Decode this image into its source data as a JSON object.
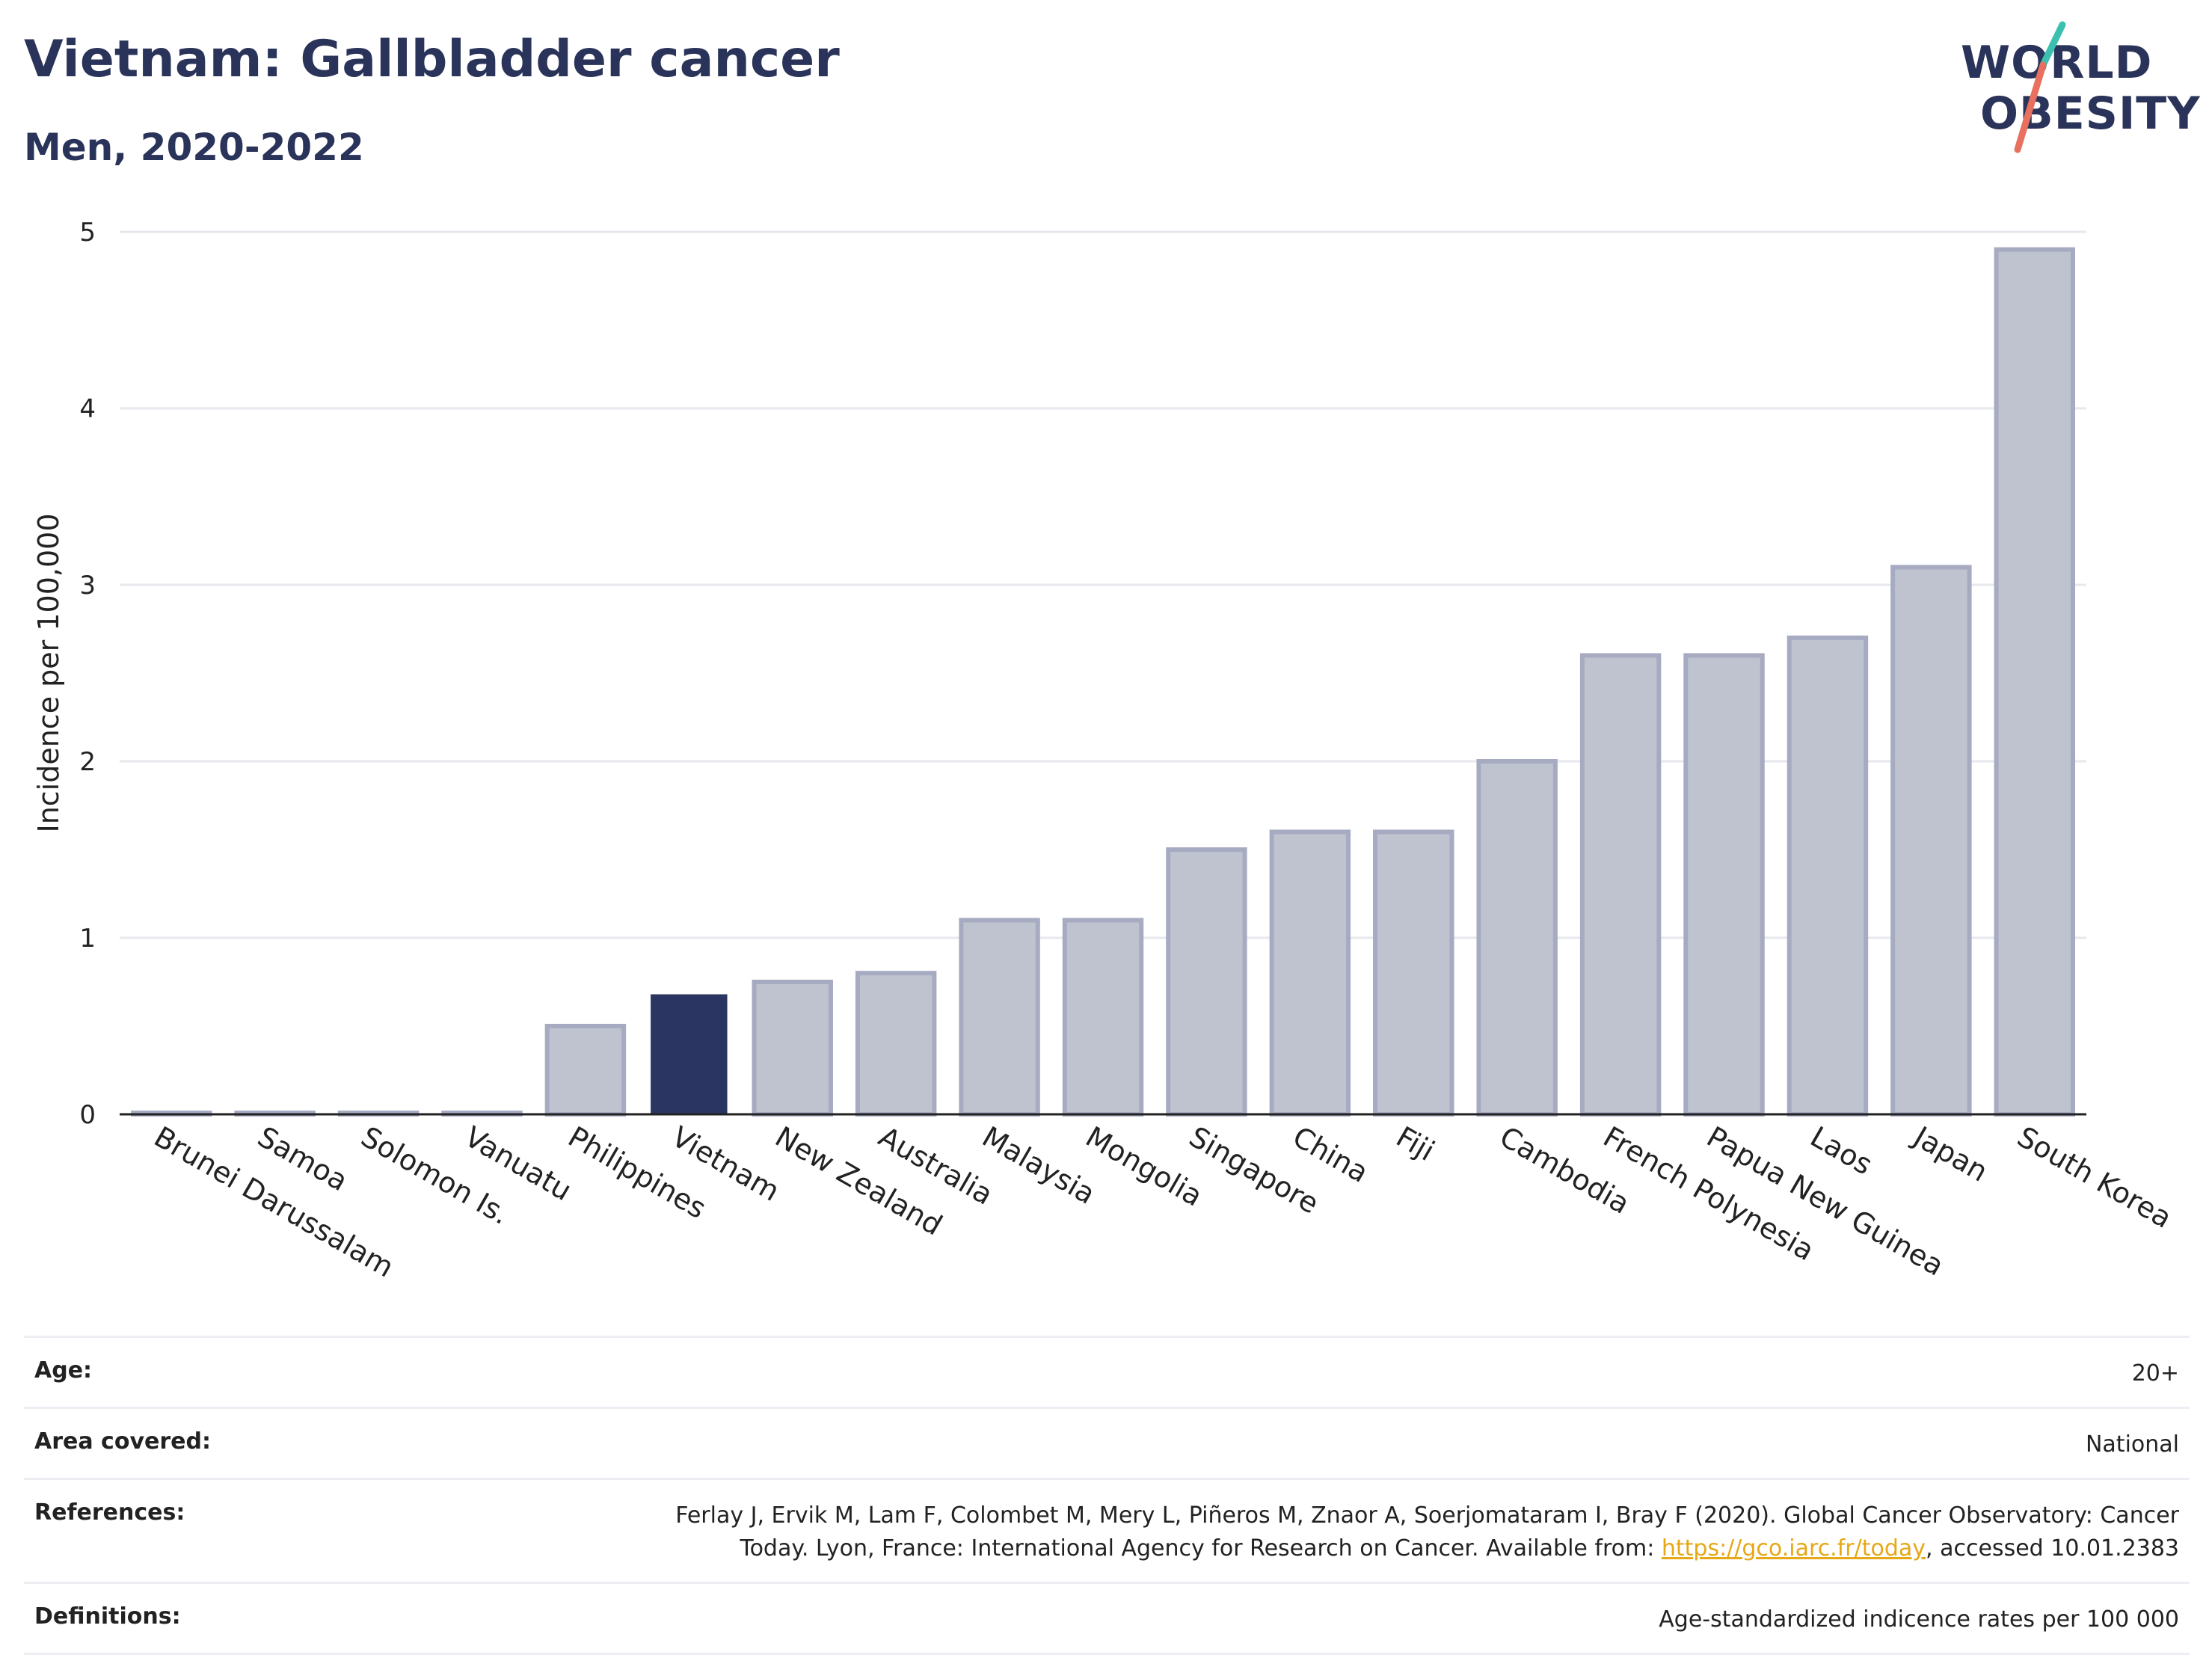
{
  "header": {
    "title": "Vietnam: Gallbladder cancer",
    "subtitle": "Men, 2020-2022"
  },
  "logo": {
    "line1": "WORLD",
    "line2": "OBESITY",
    "accent_colors": [
      "#3bbfb0",
      "#e8705f"
    ]
  },
  "chart_data": {
    "type": "bar",
    "title": "Vietnam: Gallbladder cancer",
    "subtitle": "Men, 2020-2022",
    "xlabel": "",
    "ylabel": "Incidence per 100,000",
    "ylim": [
      0,
      5
    ],
    "yticks": [
      0,
      1,
      2,
      3,
      4,
      5
    ],
    "grid": true,
    "highlight": "Vietnam",
    "colors": {
      "default": "#bfc3d0",
      "default_border": "#a6abc2",
      "highlight": "#2a3561",
      "axis": "#222222",
      "grid": "#e6e8ee"
    },
    "categories": [
      "Brunei Darussalam",
      "Samoa",
      "Solomon Is.",
      "Vanuatu",
      "Philippines",
      "Vietnam",
      "New Zealand",
      "Australia",
      "Malaysia",
      "Mongolia",
      "Singapore",
      "China",
      "Fiji",
      "Cambodia",
      "French Polynesia",
      "Papua New Guinea",
      "Laos",
      "Japan",
      "South Korea"
    ],
    "values": [
      0,
      0,
      0,
      0,
      0.5,
      0.68,
      0.75,
      0.8,
      1.1,
      1.1,
      1.5,
      1.6,
      1.6,
      2.0,
      2.6,
      2.6,
      2.7,
      3.1,
      4.9
    ]
  },
  "info_table": [
    {
      "label": "Age:",
      "value": "20+"
    },
    {
      "label": "Area covered:",
      "value": "National"
    },
    {
      "label": "References:",
      "value_line1": "Ferlay J, Ervik M, Lam F, Colombet M, Mery L, Piñeros M, Znaor A, Soerjomataram I, Bray F (2020). Global Cancer Observatory: Cancer",
      "value_line2_pre": "Today. Lyon, France: International Agency for Research on Cancer. Available from: ",
      "link_text": "https://gco.iarc.fr/today",
      "value_line2_post": ", accessed 10.01.2383"
    },
    {
      "label": "Definitions:",
      "value": "Age-standardized indicence rates per 100 000"
    }
  ]
}
